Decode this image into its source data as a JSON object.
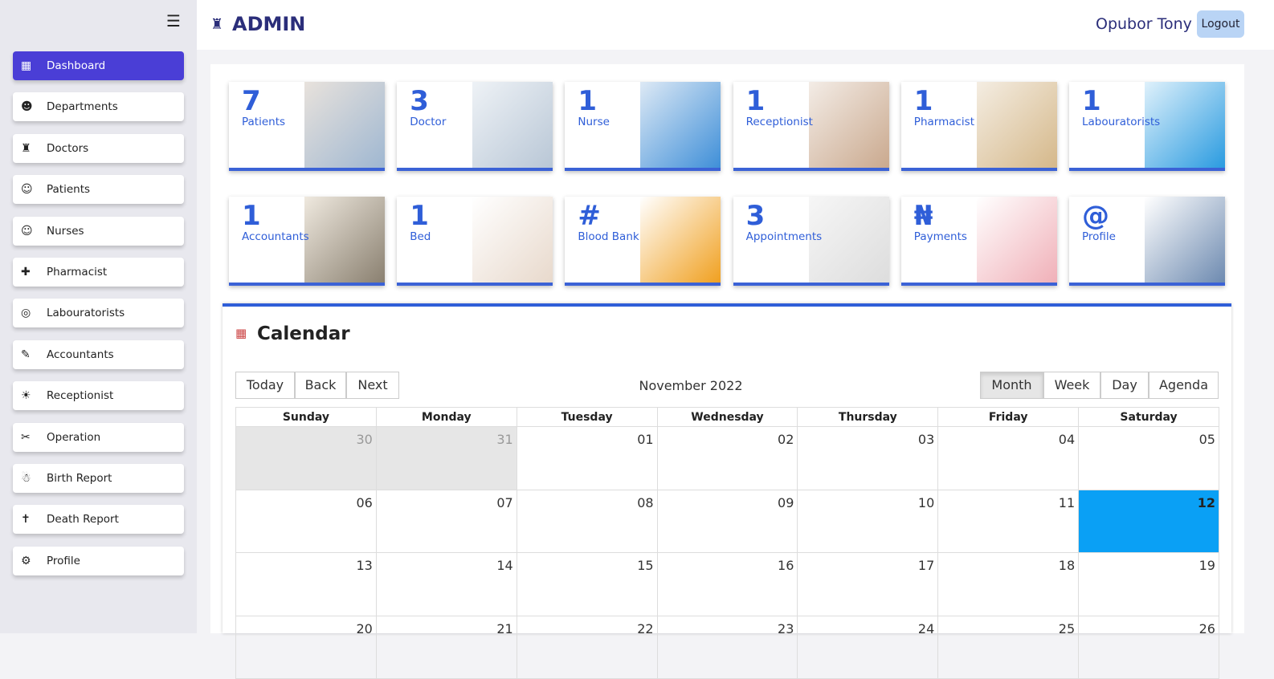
{
  "header": {
    "title": "ADMIN",
    "user": "Opubor Tony",
    "logout": "Logout"
  },
  "sidebar": {
    "items": [
      "Dashboard",
      "Departments",
      "Doctors",
      "Patients",
      "Nurses",
      "Pharmacist",
      "Labouratorists",
      "Accountants",
      "Receptionist",
      "Operation",
      "Birth Report",
      "Death Report",
      "Profile"
    ]
  },
  "cards": [
    {
      "count": 7,
      "label": "Patients"
    },
    {
      "count": 3,
      "label": "Doctor"
    },
    {
      "count": 1,
      "label": "Nurse"
    },
    {
      "count": 1,
      "label": "Receptionist"
    },
    {
      "count": 1,
      "label": "Pharmacist"
    },
    {
      "count": 1,
      "label": "Labouratorists"
    },
    {
      "count": 1,
      "label": "Accountants"
    },
    {
      "count": 1,
      "label": "Bed"
    },
    {
      "count": "#",
      "label": "Blood Bank"
    },
    {
      "count": 3,
      "label": "Appointments"
    },
    {
      "count": "₦",
      "label": "Payments"
    },
    {
      "count": "@",
      "label": "Profile"
    }
  ],
  "calendar": {
    "title": "Calendar",
    "nav": [
      "Today",
      "Back",
      "Next"
    ],
    "period": "November 2022",
    "views": [
      "Month",
      "Week",
      "Day",
      "Agenda"
    ],
    "weekdays": [
      "Sunday",
      "Monday",
      "Tuesday",
      "Wednesday",
      "Thursday",
      "Friday",
      "Saturday"
    ],
    "weeks": [
      [
        "30",
        "31",
        "01",
        "02",
        "03",
        "04",
        "05"
      ],
      [
        "06",
        "07",
        "08",
        "09",
        "10",
        "11",
        "12"
      ],
      [
        "13",
        "14",
        "15",
        "16",
        "17",
        "18",
        "19"
      ],
      [
        "20",
        "21",
        "22",
        "23",
        "24",
        "25",
        "26"
      ]
    ]
  }
}
